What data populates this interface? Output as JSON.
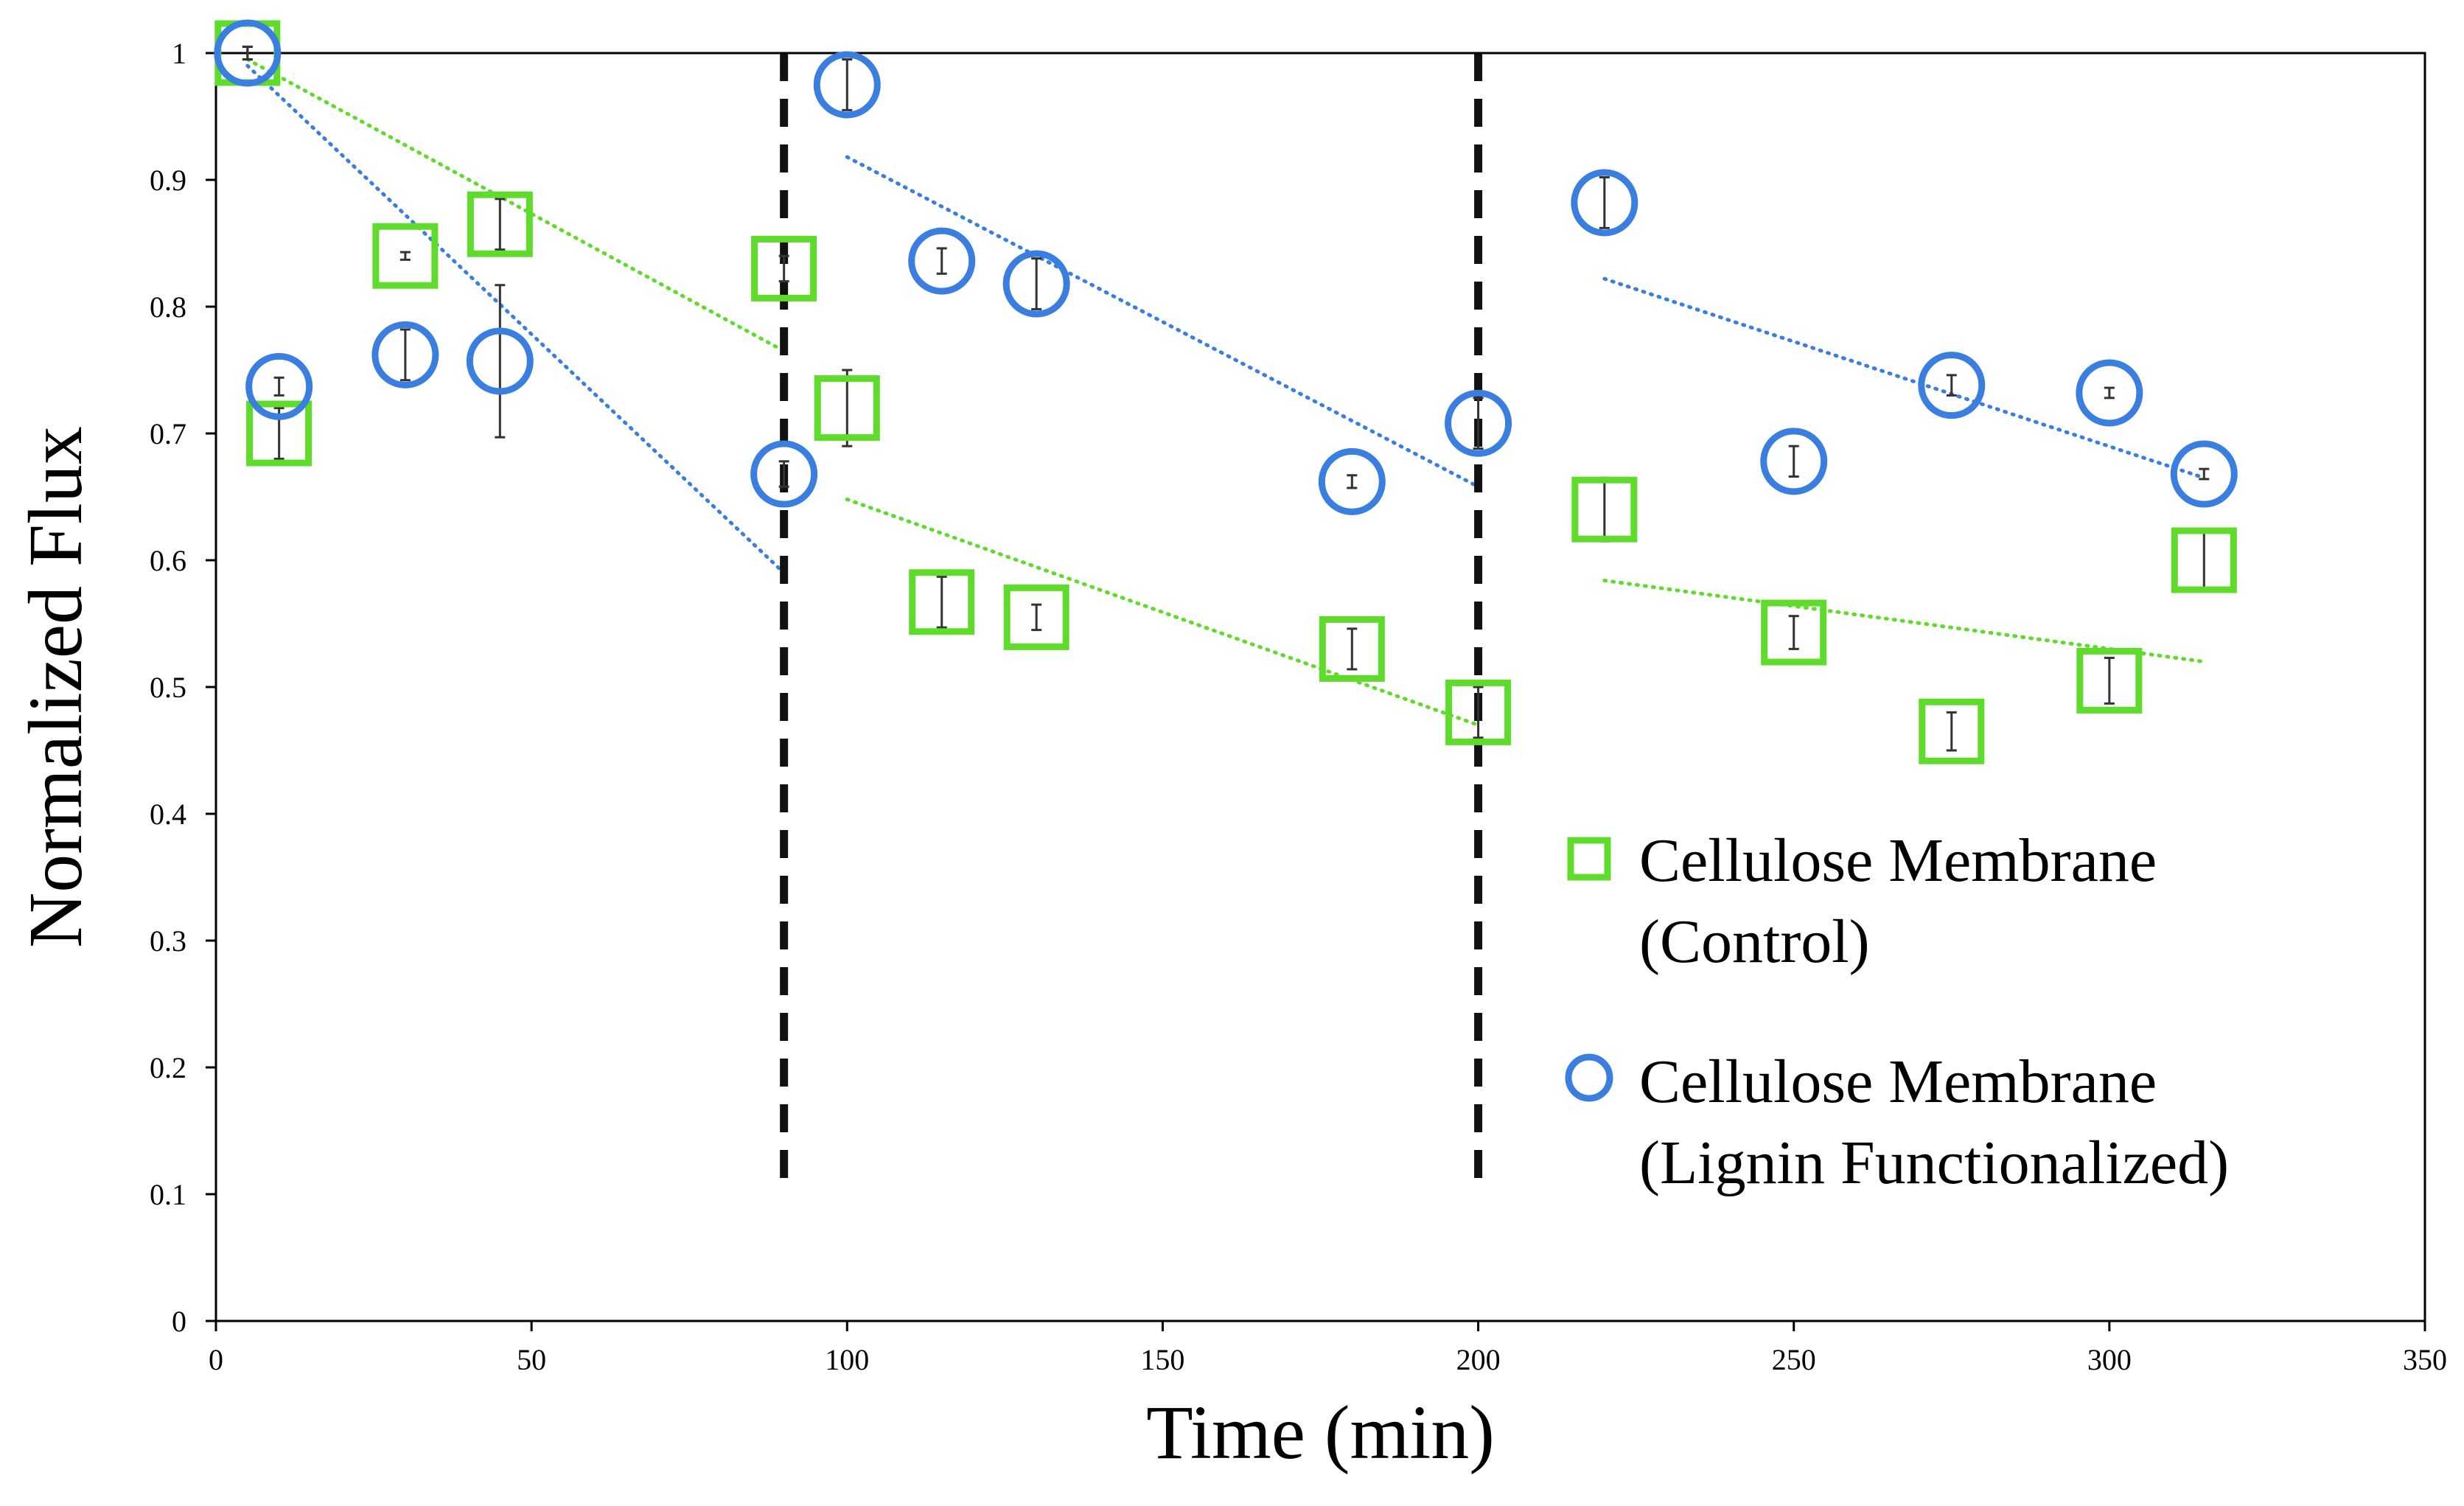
{
  "chart_data": {
    "type": "scatter",
    "title": "",
    "xlabel": "Time (min)",
    "ylabel": "Normalized Flux",
    "xlim": [
      0,
      350
    ],
    "ylim": [
      0,
      1
    ],
    "x_ticks": [
      "0",
      "50",
      "100",
      "150",
      "200",
      "250",
      "300",
      "350"
    ],
    "y_ticks": [
      "0",
      "0.1",
      "0.2",
      "0.3",
      "0.4",
      "0.5",
      "0.6",
      "0.7",
      "0.8",
      "0.9",
      "1"
    ],
    "grid": false,
    "legend_position": "right",
    "vertical_markers": [
      {
        "x": 90,
        "y_from": 0.1,
        "y_to": 1.0,
        "style": "dashed",
        "color": "#111111"
      },
      {
        "x": 200,
        "y_from": 0.1,
        "y_to": 1.0,
        "style": "dashed",
        "color": "#111111"
      }
    ],
    "series": [
      {
        "name": "Cellulose Membrane (Control)",
        "legend_lines": [
          "Cellulose Membrane",
          "(Control)"
        ],
        "marker": "square",
        "color": "#5fdb2b",
        "points": [
          {
            "x": 5,
            "y": 1.0,
            "err": 0.005
          },
          {
            "x": 10,
            "y": 0.7,
            "err": 0.02
          },
          {
            "x": 30,
            "y": 0.84,
            "err": 0.003
          },
          {
            "x": 45,
            "y": 0.865,
            "err": 0.02
          },
          {
            "x": 90,
            "y": 0.83,
            "err": 0.01
          },
          {
            "x": 100,
            "y": 0.72,
            "err": 0.03
          },
          {
            "x": 115,
            "y": 0.567,
            "err": 0.02
          },
          {
            "x": 130,
            "y": 0.555,
            "err": 0.01
          },
          {
            "x": 180,
            "y": 0.53,
            "err": 0.016
          },
          {
            "x": 200,
            "y": 0.48,
            "err": 0.02
          },
          {
            "x": 220,
            "y": 0.64,
            "err": 0.025
          },
          {
            "x": 250,
            "y": 0.543,
            "err": 0.013
          },
          {
            "x": 275,
            "y": 0.465,
            "err": 0.015
          },
          {
            "x": 300,
            "y": 0.505,
            "err": 0.018
          },
          {
            "x": 315,
            "y": 0.6,
            "err": 0.025
          }
        ],
        "trendlines": [
          {
            "x": [
              5,
              90
            ],
            "y": [
              0.995,
              0.765
            ]
          },
          {
            "x": [
              100,
              200
            ],
            "y": [
              0.648,
              0.47
            ]
          },
          {
            "x": [
              220,
              315
            ],
            "y": [
              0.584,
              0.52
            ]
          }
        ]
      },
      {
        "name": "Cellulose Membrane (Lignin Functionalized)",
        "legend_lines": [
          "Cellulose Membrane",
          "(Lignin Functionalized)"
        ],
        "marker": "circle",
        "color": "#3a7ee0",
        "points": [
          {
            "x": 5,
            "y": 1.0,
            "err": 0.005
          },
          {
            "x": 10,
            "y": 0.737,
            "err": 0.007
          },
          {
            "x": 30,
            "y": 0.762,
            "err": 0.02
          },
          {
            "x": 45,
            "y": 0.757,
            "err": 0.06
          },
          {
            "x": 90,
            "y": 0.668,
            "err": 0.01
          },
          {
            "x": 100,
            "y": 0.975,
            "err": 0.02
          },
          {
            "x": 115,
            "y": 0.836,
            "err": 0.01
          },
          {
            "x": 130,
            "y": 0.818,
            "err": 0.02
          },
          {
            "x": 180,
            "y": 0.662,
            "err": 0.005
          },
          {
            "x": 200,
            "y": 0.708,
            "err": 0.02
          },
          {
            "x": 220,
            "y": 0.882,
            "err": 0.02
          },
          {
            "x": 250,
            "y": 0.678,
            "err": 0.012
          },
          {
            "x": 275,
            "y": 0.738,
            "err": 0.008
          },
          {
            "x": 300,
            "y": 0.732,
            "err": 0.004
          },
          {
            "x": 315,
            "y": 0.668,
            "err": 0.004
          }
        ],
        "trendlines": [
          {
            "x": [
              5,
              90
            ],
            "y": [
              0.99,
              0.59
            ]
          },
          {
            "x": [
              100,
              200
            ],
            "y": [
              0.918,
              0.658
            ]
          },
          {
            "x": [
              220,
              315
            ],
            "y": [
              0.822,
              0.665
            ]
          }
        ]
      }
    ]
  }
}
